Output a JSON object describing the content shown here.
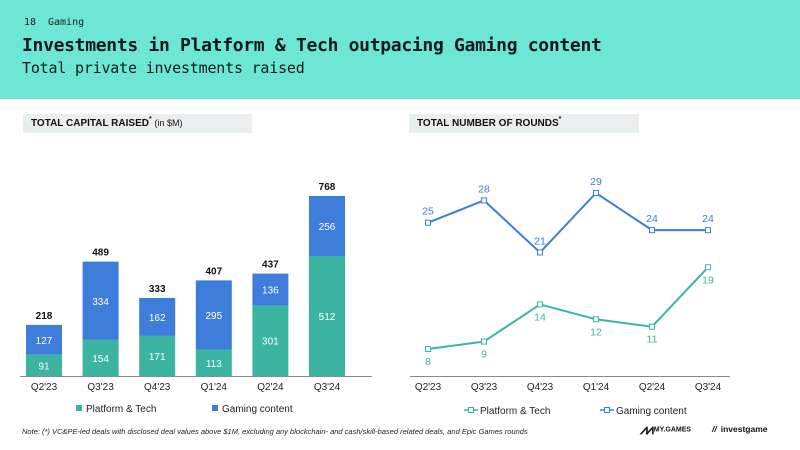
{
  "header": {
    "slide_number": "18",
    "section": "Gaming",
    "title": "Investments in Platform & Tech outpacing Gaming content",
    "subtitle": "Total private investments raised"
  },
  "left_panel": {
    "title": "TOTAL CAPITAL RAISED",
    "title_sup": "*",
    "title_note": "(in $M)"
  },
  "right_panel": {
    "title": "TOTAL NUMBER OF ROUNDS",
    "title_sup": "*"
  },
  "colors": {
    "header_bg": "#6ee6d6",
    "platform_tech": "#3bb5a2",
    "gaming_content": "#3f7ddb",
    "panel_header_bg": "#e9efef"
  },
  "chart_data": [
    {
      "type": "bar",
      "stacked": true,
      "categories": [
        "Q2'23",
        "Q3'23",
        "Q4'23",
        "Q1'24",
        "Q2'24",
        "Q3'24"
      ],
      "series": [
        {
          "name": "Platform & Tech",
          "values": [
            91,
            154,
            171,
            113,
            301,
            512
          ],
          "color": "#3bb5a2"
        },
        {
          "name": "Gaming content",
          "values": [
            127,
            334,
            162,
            295,
            136,
            256
          ],
          "color": "#3f7ddb"
        }
      ],
      "totals": [
        218,
        489,
        333,
        407,
        437,
        768
      ],
      "title": "TOTAL CAPITAL RAISED",
      "ylabel": "(in $M)",
      "ylim": [
        0,
        768
      ],
      "legend": "bottom",
      "grid": false
    },
    {
      "type": "line",
      "categories": [
        "Q2'23",
        "Q3'23",
        "Q4'23",
        "Q1'24",
        "Q2'24",
        "Q3'24"
      ],
      "series": [
        {
          "name": "Platform & Tech",
          "values": [
            8,
            9,
            14,
            12,
            11,
            19
          ],
          "color": "#3bb5a2"
        },
        {
          "name": "Gaming content",
          "values": [
            25,
            28,
            21,
            29,
            24,
            24
          ],
          "color": "#3f7ddb"
        }
      ],
      "title": "TOTAL NUMBER OF ROUNDS",
      "ylim": [
        8,
        29
      ],
      "legend": "bottom",
      "grid": false
    }
  ],
  "footnote": "Note: (*) VC&PE-led deals with disclosed deal values above $1M, excluding any blockchain- and cash/skill-based related deals, and Epic Games rounds",
  "logos": {
    "mygames": "MY.GAMES",
    "investgame": "investgame"
  }
}
